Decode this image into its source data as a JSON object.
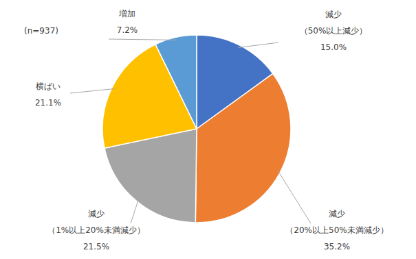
{
  "chart_data": {
    "type": "pie",
    "annotation": "(n=937)",
    "categories": [
      "減少（50%以上減少）",
      "減少（20%以上50%未満減少）",
      "減少（1%以上20%未満減少）",
      "横ばい",
      "増加"
    ],
    "values": [
      15.0,
      35.2,
      21.5,
      21.1,
      7.2
    ],
    "value_labels": [
      "15.0%",
      "35.2%",
      "21.5%",
      "21.1%",
      "7.2%"
    ],
    "colors": [
      "#4472c4",
      "#ed7d31",
      "#a5a5a5",
      "#ffc000",
      "#5b9bd5"
    ],
    "data_labels": true
  }
}
